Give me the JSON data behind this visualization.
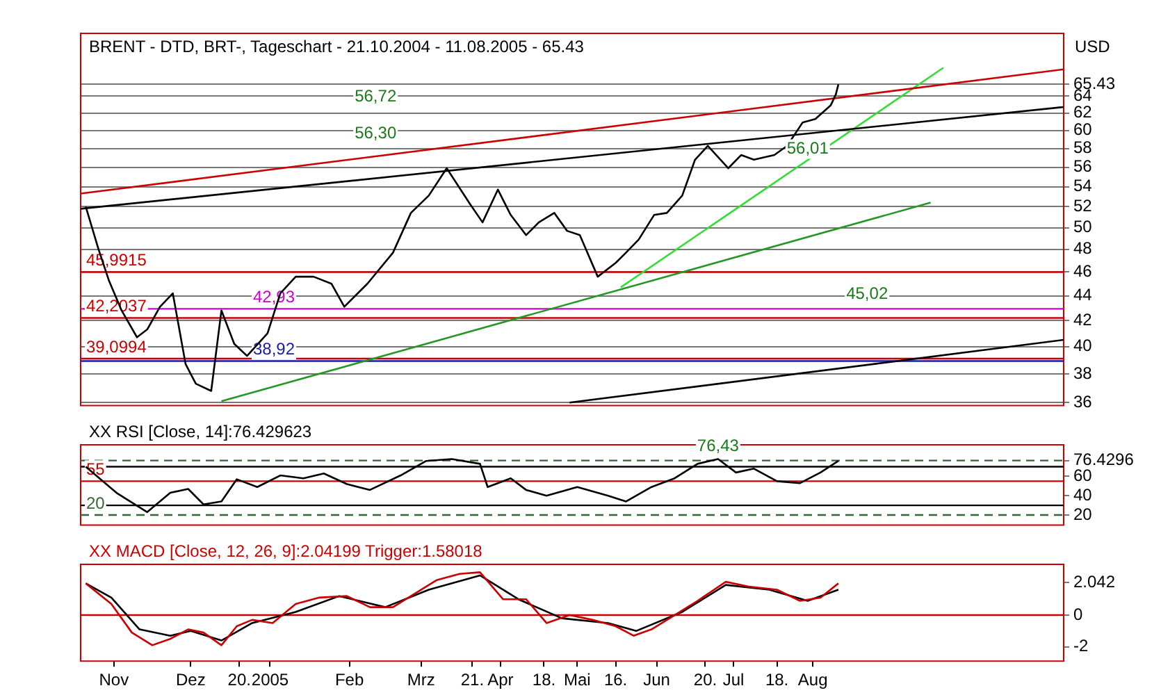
{
  "chart_data": [
    {
      "type": "line",
      "title": "BRENT - DTD, BRT-, Tageschart - 21.10.2004 - 11.08.2005 - 65.43",
      "ylabel": "USD",
      "log": "y",
      "grid": "y",
      "legend": false,
      "marker": "none",
      "tick_labels": "y",
      "xlim": [
        "2004-10-19",
        "2005-11-07"
      ],
      "ylim": [
        35.8,
        72
      ],
      "yticks": [
        36,
        38,
        40,
        42,
        44,
        46,
        48,
        50,
        52,
        54,
        56,
        58,
        60,
        62,
        64,
        65.43
      ],
      "series": [
        {
          "type": "line",
          "color": "#000000",
          "x": [
            "2004-10-21",
            "2004-10-26",
            "2004-10-30",
            "2004-11-04",
            "2004-11-10",
            "2004-11-14",
            "2004-11-19",
            "2004-11-24",
            "2004-11-29",
            "2004-12-03",
            "2004-12-09",
            "2004-12-13",
            "2004-12-18",
            "2004-12-23",
            "2004-12-31",
            "2005-01-05",
            "2005-01-11",
            "2005-01-18",
            "2005-01-25",
            "2005-01-30",
            "2005-02-08",
            "2005-02-18",
            "2005-02-25",
            "2005-03-04",
            "2005-03-11",
            "2005-03-20",
            "2005-03-25",
            "2005-03-31",
            "2005-04-05",
            "2005-04-11",
            "2005-04-16",
            "2005-04-22",
            "2005-04-27",
            "2005-05-02",
            "2005-05-09",
            "2005-05-16",
            "2005-05-20",
            "2005-05-25",
            "2005-05-31",
            "2005-06-05",
            "2005-06-11",
            "2005-06-16",
            "2005-06-21",
            "2005-06-29",
            "2005-07-04",
            "2005-07-09",
            "2005-07-17",
            "2005-07-22",
            "2005-07-28",
            "2005-08-02",
            "2005-08-08",
            "2005-08-10",
            "2005-08-11"
          ],
          "values": [
            52.0,
            48.0,
            45.3,
            42.8,
            40.7,
            41.3,
            43.1,
            44.2,
            38.7,
            37.3,
            36.8,
            42.8,
            40.2,
            39.3,
            41.0,
            44.2,
            45.6,
            45.6,
            45.0,
            43.1,
            45.0,
            47.7,
            51.4,
            53.1,
            55.9,
            52.3,
            50.5,
            53.7,
            51.2,
            49.3,
            50.5,
            51.4,
            49.7,
            49.3,
            45.6,
            46.8,
            47.7,
            48.9,
            51.2,
            51.4,
            53.1,
            56.8,
            58.3,
            55.9,
            57.3,
            56.8,
            57.3,
            58.3,
            60.9,
            61.3,
            62.9,
            64.2,
            65.43
          ]
        },
        {
          "type": "line",
          "color": "#000000",
          "x": [
            "2004-10-19",
            "2005-11-07"
          ],
          "values": [
            51.8,
            62.7
          ]
        },
        {
          "type": "line",
          "color": "#cc0000",
          "x": [
            "2004-10-19",
            "2005-11-07"
          ],
          "values": [
            53.3,
            67.3
          ]
        },
        {
          "type": "line",
          "color": "#33dd33",
          "x": [
            "2005-05-18",
            "2005-09-21"
          ],
          "values": [
            44.7,
            67.5
          ]
        },
        {
          "type": "line",
          "color": "#229922",
          "x": [
            "2004-12-13",
            "2005-09-16"
          ],
          "values": [
            36.1,
            52.4
          ]
        },
        {
          "type": "line",
          "color": "#000000",
          "x": [
            "2005-04-28",
            "2005-11-07"
          ],
          "values": [
            36.0,
            40.5
          ]
        }
      ],
      "ref_lines": [
        {
          "axis": "y",
          "value": 45.9915,
          "label": "45,9915",
          "color": "#cc0000"
        },
        {
          "axis": "y",
          "value": 42.2037,
          "label": "42,2037",
          "color": "#cc0000"
        },
        {
          "axis": "y",
          "value": 39.0994,
          "label": "39,0994",
          "color": "#cc0000"
        },
        {
          "axis": "y",
          "value": 42.93,
          "label": "42,93",
          "color": "#cc00cc"
        },
        {
          "axis": "y",
          "value": 38.92,
          "label": "38,92",
          "color": "#1a1aaa"
        }
      ],
      "annotations": [
        "56,72",
        "56,30",
        {
          "text": "56,01",
          "x": "2005-07-30",
          "y": 56.6
        },
        "45,02"
      ]
    },
    {
      "type": "line",
      "title": "XX RSI [Close, 14]:76.429623",
      "grid": false,
      "legend": false,
      "marker": "none",
      "tick_labels": "y",
      "xlim": [
        "2004-10-19",
        "2005-11-07"
      ],
      "ylim": [
        9.5,
        92.7
      ],
      "yticks": [
        20,
        40,
        60,
        76.4296
      ],
      "series": [
        {
          "type": "line",
          "color": "#000000",
          "x": [
            "2004-10-21",
            "2004-11-02",
            "2004-11-14",
            "2004-11-23",
            "2004-11-30",
            "2004-12-06",
            "2004-12-13",
            "2004-12-19",
            "2004-12-27",
            "2005-01-05",
            "2005-01-14",
            "2005-01-22",
            "2005-01-31",
            "2005-02-09",
            "2005-02-21",
            "2005-03-03",
            "2005-03-13",
            "2005-03-24",
            "2005-03-27",
            "2005-04-05",
            "2005-04-11",
            "2005-04-19",
            "2005-05-01",
            "2005-05-13",
            "2005-05-20",
            "2005-05-30",
            "2005-06-08",
            "2005-06-17",
            "2005-06-25",
            "2005-07-02",
            "2005-07-09",
            "2005-07-18",
            "2005-07-27",
            "2005-08-04",
            "2005-08-11"
          ],
          "values": [
            70,
            43,
            23,
            43,
            47,
            31,
            34,
            57,
            49,
            61,
            58,
            63,
            52,
            46,
            61,
            76,
            78,
            73,
            49,
            58,
            46,
            40,
            49,
            40,
            34,
            49,
            58,
            73,
            78,
            64,
            68,
            55,
            53,
            64,
            76
          ]
        }
      ],
      "ref_lines": [
        {
          "axis": "y",
          "value": 76.4296,
          "color": "#336633",
          "line_style": "dashed"
        },
        {
          "axis": "y",
          "value": 70,
          "color": "#000000"
        },
        {
          "axis": "y",
          "value": 55,
          "label": "55",
          "color": "#cc0000"
        },
        {
          "axis": "y",
          "value": 30,
          "color": "#000000"
        },
        {
          "axis": "y",
          "value": 20,
          "label": "20",
          "color": "#336633",
          "line_style": "dashed"
        }
      ],
      "annotations": [
        {
          "text": "76,43",
          "x": "2005-06-25",
          "y": 78
        }
      ]
    },
    {
      "type": "line",
      "title": "XX MACD [Close, 12, 26, 9]:2.04199 Trigger:1.58018",
      "grid": false,
      "legend": false,
      "marker": "none",
      "xlim": [
        "2004-10-19",
        "2005-11-07"
      ],
      "xticks": [
        {
          "value": "2004-11-01",
          "label": "Nov"
        },
        {
          "value": "2004-12-01",
          "label": "Dez"
        },
        {
          "value": "2004-12-20",
          "label": "20."
        },
        {
          "value": "2005-01-01",
          "label": "2005"
        },
        {
          "value": "2005-02-01",
          "label": "Feb"
        },
        {
          "value": "2005-03-01",
          "label": "Mrz"
        },
        {
          "value": "2005-03-21",
          "label": "21."
        },
        {
          "value": "2005-04-01",
          "label": "Apr"
        },
        {
          "value": "2005-04-18",
          "label": "18."
        },
        {
          "value": "2005-05-01",
          "label": "Mai"
        },
        {
          "value": "2005-05-16",
          "label": "16."
        },
        {
          "value": "2005-06-01",
          "label": "Jun"
        },
        {
          "value": "2005-06-20",
          "label": "20."
        },
        {
          "value": "2005-07-01",
          "label": "Jul"
        },
        {
          "value": "2005-07-18",
          "label": "18."
        },
        {
          "value": "2005-08-01",
          "label": "Aug"
        }
      ],
      "ylim": [
        -2.9,
        3.2
      ],
      "yticks": [
        -2,
        0,
        2.042
      ],
      "series": [
        {
          "type": "line",
          "color": "#cc0000",
          "x": [
            "2004-10-21",
            "2004-10-31",
            "2004-11-08",
            "2004-11-16",
            "2004-11-23",
            "2004-11-30",
            "2004-12-06",
            "2004-12-13",
            "2004-12-19",
            "2004-12-25",
            "2005-01-02",
            "2005-01-11",
            "2005-01-20",
            "2005-01-31",
            "2005-02-09",
            "2005-02-18",
            "2005-02-26",
            "2005-03-07",
            "2005-03-16",
            "2005-03-24",
            "2005-04-02",
            "2005-04-11",
            "2005-04-19",
            "2005-04-28",
            "2005-05-07",
            "2005-05-16",
            "2005-05-23",
            "2005-05-30",
            "2005-06-08",
            "2005-06-17",
            "2005-06-28",
            "2005-07-07",
            "2005-07-18",
            "2005-07-27",
            "2005-08-04",
            "2005-08-11"
          ],
          "values": [
            2.0,
            0.7,
            -1.1,
            -1.9,
            -1.5,
            -0.9,
            -1.1,
            -1.9,
            -0.7,
            -0.3,
            -0.5,
            0.7,
            1.1,
            1.2,
            0.5,
            0.5,
            1.3,
            2.2,
            2.6,
            2.7,
            1.0,
            1.0,
            -0.5,
            0,
            -0.3,
            -0.7,
            -1.3,
            -0.9,
            0,
            0.9,
            2.1,
            1.8,
            1.6,
            0.9,
            1.1,
            2.0
          ]
        },
        {
          "type": "line",
          "color": "#000000",
          "x": [
            "2004-10-21",
            "2004-10-31",
            "2004-11-11",
            "2004-11-23",
            "2004-12-01",
            "2004-12-13",
            "2004-12-25",
            "2005-01-11",
            "2005-01-28",
            "2005-02-15",
            "2005-03-04",
            "2005-03-24",
            "2005-04-08",
            "2005-04-25",
            "2005-05-13",
            "2005-05-24",
            "2005-06-11",
            "2005-06-28",
            "2005-07-15",
            "2005-07-30",
            "2005-08-11"
          ],
          "values": [
            2.0,
            1.1,
            -0.9,
            -1.3,
            -1.0,
            -1.6,
            -0.5,
            0.2,
            1.2,
            0.5,
            1.6,
            2.5,
            1.0,
            -0.2,
            -0.5,
            -1.0,
            0.2,
            1.9,
            1.6,
            0.9,
            1.6
          ]
        }
      ],
      "ref_lines": [
        {
          "axis": "y",
          "value": 0,
          "color": "#cc0000"
        }
      ]
    }
  ]
}
